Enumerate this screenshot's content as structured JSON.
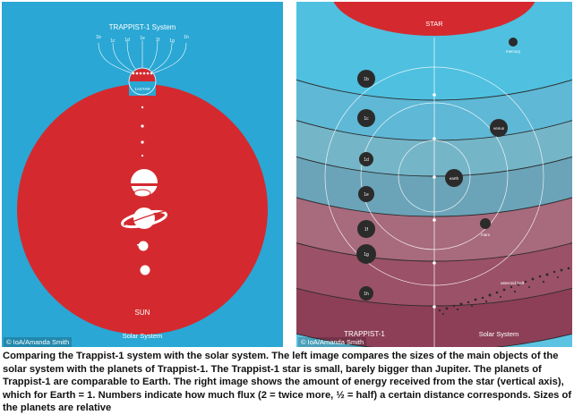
{
  "left_panel": {
    "title": "TRAPPIST-1 System",
    "planet_letters": [
      "1b",
      "1c",
      "1d",
      "1e",
      "1f",
      "1g",
      "1h"
    ],
    "star_label": "1ASTAR",
    "sun_label": "SUN",
    "footer_label": "Solar System",
    "credit": "© IoA/Amanda Smith",
    "colors": {
      "background": "#2aa7d4",
      "star_red": "#d42a2f"
    }
  },
  "right_panel": {
    "star_label": "STAR",
    "trappist_planets": [
      "1b",
      "1c",
      "1d",
      "1e",
      "1f",
      "1g",
      "1h"
    ],
    "solar_planets": [
      "mercury",
      "venus",
      "earth",
      "mars"
    ],
    "asteroid_label": "asteroid belt",
    "footer_left": "TRAPPIST-1",
    "footer_right": "Solar System",
    "credit": "© IoA/Amanda Smith"
  },
  "caption": "Comparing the Trappist-1 system with the solar system. The left image compares the sizes of the main objects of the solar system with the planets of Trappist-1. The Trappist-1 star is small, barely bigger than Jupiter. The planets of Trappist-1 are comparable to Earth. The right image shows the amount of energy received from the star (vertical axis), which for Earth = 1. Numbers indicate how much flux (2 = twice more, ½ = half) a certain distance corresponds. Sizes of the planets are relative"
}
